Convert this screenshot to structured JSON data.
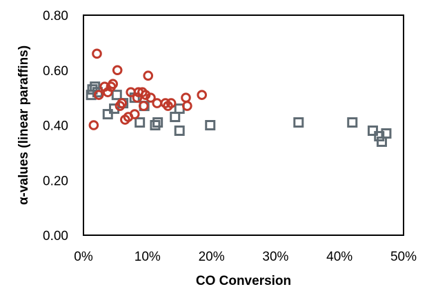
{
  "chart_data": {
    "type": "scatter",
    "title": "",
    "xlabel": "CO Conversion",
    "ylabel": "α-values (linear paraffins)",
    "xlim": [
      0,
      50
    ],
    "ylim": [
      0,
      0.8
    ],
    "x_ticks": [
      "0%",
      "10%",
      "20%",
      "30%",
      "40%",
      "50%"
    ],
    "y_ticks": [
      "0.00",
      "0.20",
      "0.40",
      "0.60",
      "0.80"
    ],
    "grid": false,
    "legend": "none",
    "series": [
      {
        "marker": "square",
        "color": "#5f6b73",
        "points": [
          [
            1.2,
            0.51
          ],
          [
            1.4,
            0.53
          ],
          [
            1.8,
            0.54
          ],
          [
            2.2,
            0.52
          ],
          [
            3.8,
            0.44
          ],
          [
            4.8,
            0.46
          ],
          [
            5.2,
            0.51
          ],
          [
            6.2,
            0.48
          ],
          [
            8.0,
            0.5
          ],
          [
            8.8,
            0.41
          ],
          [
            9.5,
            0.47
          ],
          [
            11.2,
            0.4
          ],
          [
            11.6,
            0.41
          ],
          [
            14.3,
            0.43
          ],
          [
            15.0,
            0.46
          ],
          [
            15.0,
            0.38
          ],
          [
            19.8,
            0.4
          ],
          [
            33.6,
            0.41
          ],
          [
            42.0,
            0.41
          ],
          [
            45.2,
            0.38
          ],
          [
            46.2,
            0.36
          ],
          [
            46.6,
            0.34
          ],
          [
            47.3,
            0.37
          ]
        ]
      },
      {
        "marker": "circle",
        "color": "#c0392b",
        "points": [
          [
            1.6,
            0.4
          ],
          [
            2.1,
            0.66
          ],
          [
            2.4,
            0.51
          ],
          [
            3.3,
            0.54
          ],
          [
            3.8,
            0.52
          ],
          [
            4.3,
            0.54
          ],
          [
            4.6,
            0.55
          ],
          [
            5.3,
            0.6
          ],
          [
            5.7,
            0.47
          ],
          [
            6.0,
            0.48
          ],
          [
            6.5,
            0.42
          ],
          [
            7.0,
            0.43
          ],
          [
            7.4,
            0.52
          ],
          [
            8.0,
            0.44
          ],
          [
            8.4,
            0.5
          ],
          [
            8.6,
            0.52
          ],
          [
            9.2,
            0.52
          ],
          [
            9.4,
            0.47
          ],
          [
            9.7,
            0.51
          ],
          [
            10.1,
            0.58
          ],
          [
            10.5,
            0.5
          ],
          [
            11.5,
            0.48
          ],
          [
            12.8,
            0.48
          ],
          [
            13.2,
            0.47
          ],
          [
            13.7,
            0.48
          ],
          [
            16.0,
            0.5
          ],
          [
            16.2,
            0.47
          ],
          [
            18.5,
            0.51
          ]
        ]
      }
    ]
  }
}
